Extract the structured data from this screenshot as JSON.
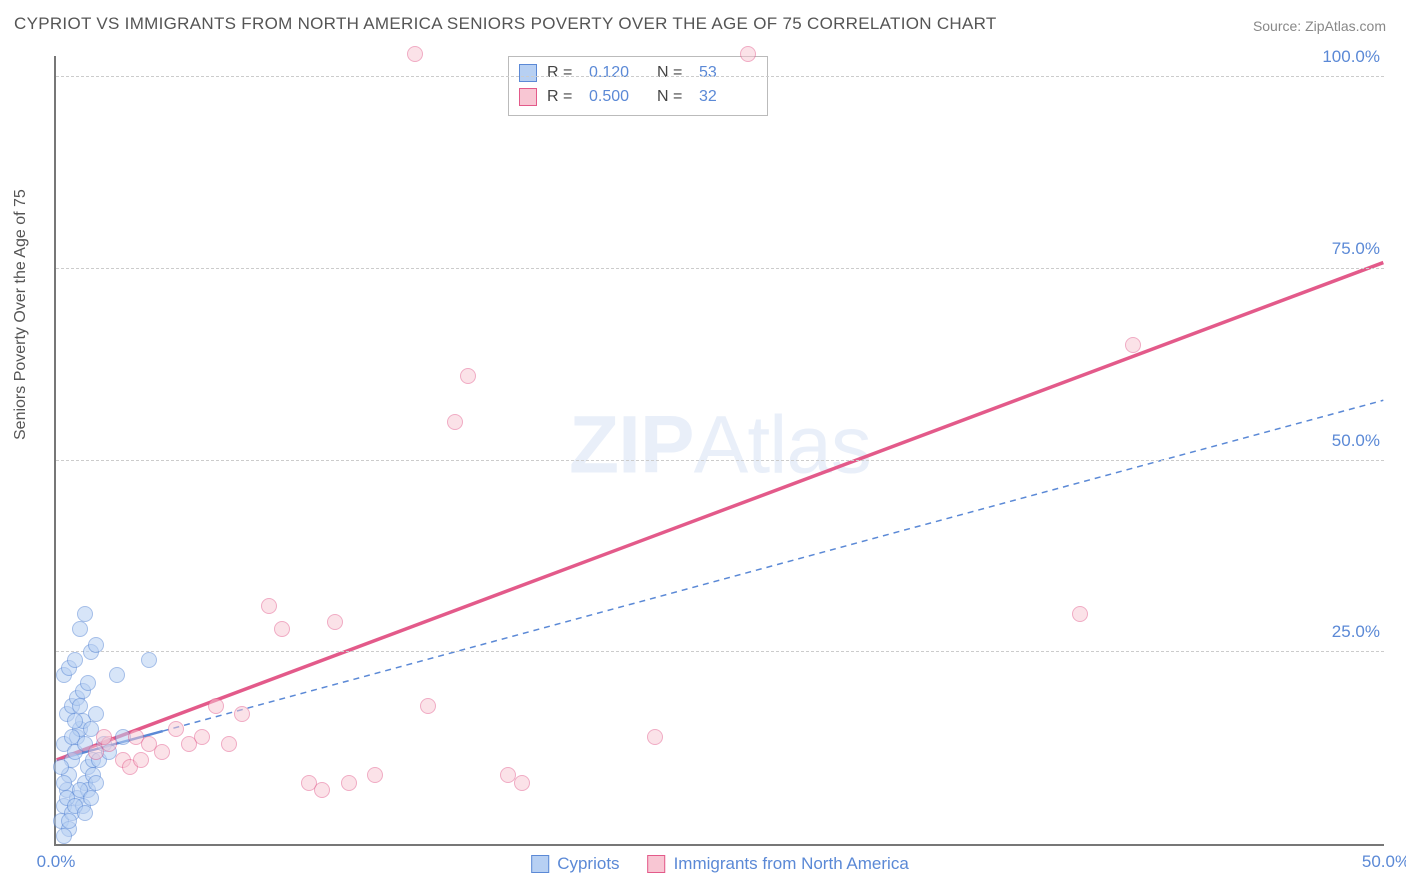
{
  "title": "CYPRIOT VS IMMIGRANTS FROM NORTH AMERICA SENIORS POVERTY OVER THE AGE OF 75 CORRELATION CHART",
  "source": "Source: ZipAtlas.com",
  "y_axis_label": "Seniors Poverty Over the Age of 75",
  "watermark_bold": "ZIP",
  "watermark_rest": "Atlas",
  "chart": {
    "type": "scatter",
    "xlim": [
      0,
      50
    ],
    "ylim": [
      0,
      103
    ],
    "x_ticks": [
      {
        "v": 0,
        "l": "0.0%"
      },
      {
        "v": 50,
        "l": "50.0%"
      }
    ],
    "y_ticks": [
      {
        "v": 25,
        "l": "25.0%"
      },
      {
        "v": 50,
        "l": "50.0%"
      },
      {
        "v": 75,
        "l": "75.0%"
      },
      {
        "v": 100,
        "l": "100.0%"
      }
    ],
    "grid_color": "#cccccc",
    "background_color": "#ffffff",
    "axis_color": "#777777",
    "tick_label_color": "#5b89d6",
    "marker_radius": 8,
    "series": [
      {
        "name": "Cypriots",
        "fill": "#b7d0f3",
        "stroke": "#5b89d6",
        "fill_opacity": 0.55,
        "R": "0.120",
        "N": "53",
        "trend": {
          "x1": 0,
          "y1": 11,
          "x2": 50,
          "y2": 58,
          "dash": "6,5",
          "width": 1.5,
          "color": "#5b89d6",
          "solid_until_x": 4
        },
        "points": [
          [
            0.2,
            3
          ],
          [
            0.3,
            5
          ],
          [
            0.4,
            7
          ],
          [
            0.5,
            9
          ],
          [
            0.6,
            11
          ],
          [
            0.3,
            13
          ],
          [
            0.7,
            12
          ],
          [
            0.8,
            14
          ],
          [
            0.9,
            15
          ],
          [
            1.0,
            16
          ],
          [
            0.5,
            2
          ],
          [
            0.6,
            4
          ],
          [
            0.8,
            6
          ],
          [
            1.1,
            8
          ],
          [
            1.2,
            10
          ],
          [
            1.4,
            11
          ],
          [
            0.4,
            17
          ],
          [
            0.6,
            18
          ],
          [
            0.8,
            19
          ],
          [
            1.0,
            20
          ],
          [
            1.2,
            21
          ],
          [
            0.3,
            22
          ],
          [
            0.5,
            23
          ],
          [
            0.7,
            24
          ],
          [
            1.3,
            25
          ],
          [
            1.5,
            26
          ],
          [
            0.9,
            28
          ],
          [
            1.1,
            30
          ],
          [
            1.0,
            5
          ],
          [
            1.2,
            7
          ],
          [
            1.4,
            9
          ],
          [
            1.6,
            11
          ],
          [
            1.8,
            13
          ],
          [
            2.0,
            12
          ],
          [
            2.3,
            22
          ],
          [
            2.5,
            14
          ],
          [
            0.2,
            10
          ],
          [
            0.3,
            8
          ],
          [
            0.4,
            6
          ],
          [
            0.6,
            14
          ],
          [
            0.7,
            16
          ],
          [
            0.9,
            18
          ],
          [
            1.1,
            13
          ],
          [
            1.3,
            15
          ],
          [
            1.5,
            17
          ],
          [
            3.5,
            24
          ],
          [
            0.3,
            1
          ],
          [
            0.5,
            3
          ],
          [
            0.7,
            5
          ],
          [
            0.9,
            7
          ],
          [
            1.1,
            4
          ],
          [
            1.3,
            6
          ],
          [
            1.5,
            8
          ]
        ]
      },
      {
        "name": "Immigrants from North America",
        "fill": "#f8c6d3",
        "stroke": "#e35a8a",
        "fill_opacity": 0.5,
        "R": "0.500",
        "N": "32",
        "trend": {
          "x1": 0,
          "y1": 11,
          "x2": 50,
          "y2": 76,
          "dash": "",
          "width": 2.5,
          "color": "#e35a8a",
          "solid_until_x": 50
        },
        "points": [
          [
            1.5,
            12
          ],
          [
            2.0,
            13
          ],
          [
            2.5,
            11
          ],
          [
            3.0,
            14
          ],
          [
            3.5,
            13
          ],
          [
            4.0,
            12
          ],
          [
            4.5,
            15
          ],
          [
            5.0,
            13
          ],
          [
            5.5,
            14
          ],
          [
            6.0,
            18
          ],
          [
            6.5,
            13
          ],
          [
            7.0,
            17
          ],
          [
            8.0,
            31
          ],
          [
            8.5,
            28
          ],
          [
            9.5,
            8
          ],
          [
            10.0,
            7
          ],
          [
            10.5,
            29
          ],
          [
            11.0,
            8
          ],
          [
            12.0,
            9
          ],
          [
            13.5,
            103
          ],
          [
            14.0,
            18
          ],
          [
            15.5,
            61
          ],
          [
            15.0,
            55
          ],
          [
            17.0,
            9
          ],
          [
            17.5,
            8
          ],
          [
            22.5,
            14
          ],
          [
            26.0,
            103
          ],
          [
            38.5,
            30
          ],
          [
            40.5,
            65
          ],
          [
            2.8,
            10
          ],
          [
            3.2,
            11
          ],
          [
            1.8,
            14
          ]
        ]
      }
    ]
  },
  "stats_labels": {
    "r": "R =",
    "n": "N ="
  },
  "legend": [
    {
      "label": "Cypriots",
      "fill": "#b7d0f3",
      "stroke": "#5b89d6"
    },
    {
      "label": "Immigrants from North America",
      "fill": "#f8c6d3",
      "stroke": "#e35a8a"
    }
  ]
}
